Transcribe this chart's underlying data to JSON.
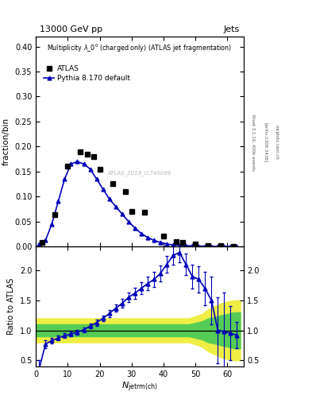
{
  "title_top_left": "13000 GeV pp",
  "title_top_right": "Jets",
  "main_subtitle": "Multiplicity λ_0° (charged only) (ATLAS jet fragmentation)",
  "ylabel_main": "fraction/bin",
  "ylabel_ratio": "Ratio to ATLAS",
  "xlabel": "$N_{\\rm jetrm(ch)}$",
  "rivet_label": "Rivet 3.1.10, 400k events",
  "arxiv_label": "[arXiv:1306.3436]",
  "mcplots_label": "mcplots.cern.ch",
  "atlas_watermark": "ATLAS_2019_I1740099",
  "atlas_x": [
    2,
    6,
    10,
    14,
    16,
    18,
    20,
    24,
    28,
    30,
    34,
    40,
    44,
    46,
    50,
    54,
    58,
    62
  ],
  "atlas_y": [
    0.008,
    0.063,
    0.16,
    0.19,
    0.185,
    0.18,
    0.155,
    0.125,
    0.11,
    0.07,
    0.068,
    0.02,
    0.01,
    0.008,
    0.005,
    0.002,
    0.001,
    0.0
  ],
  "pythia_x": [
    1,
    3,
    5,
    7,
    9,
    11,
    13,
    15,
    17,
    19,
    21,
    23,
    25,
    27,
    29,
    31,
    33,
    35,
    37,
    39,
    41,
    43,
    45,
    47,
    49,
    51,
    53,
    55,
    57,
    59,
    61,
    63
  ],
  "pythia_y": [
    0.005,
    0.012,
    0.045,
    0.09,
    0.135,
    0.165,
    0.17,
    0.165,
    0.155,
    0.135,
    0.115,
    0.095,
    0.08,
    0.065,
    0.05,
    0.037,
    0.026,
    0.018,
    0.012,
    0.008,
    0.005,
    0.003,
    0.002,
    0.0015,
    0.001,
    0.0007,
    0.0004,
    0.0002,
    0.0001,
    0.0001,
    0.0,
    0.0
  ],
  "ratio_x": [
    1,
    3,
    5,
    7,
    9,
    11,
    13,
    15,
    17,
    19,
    21,
    23,
    25,
    27,
    29,
    31,
    33,
    35,
    37,
    39,
    41,
    43,
    45,
    47,
    49,
    51,
    53,
    55,
    57,
    59,
    61,
    63
  ],
  "ratio_y": [
    0.35,
    0.77,
    0.83,
    0.87,
    0.91,
    0.94,
    0.97,
    1.01,
    1.07,
    1.13,
    1.2,
    1.28,
    1.37,
    1.45,
    1.55,
    1.62,
    1.7,
    1.78,
    1.85,
    1.95,
    2.1,
    2.25,
    2.3,
    2.1,
    1.9,
    1.85,
    1.7,
    1.5,
    1.0,
    0.98,
    0.95,
    0.92
  ],
  "ratio_yerr_lo": [
    0.15,
    0.07,
    0.05,
    0.04,
    0.04,
    0.04,
    0.04,
    0.04,
    0.04,
    0.05,
    0.05,
    0.06,
    0.06,
    0.07,
    0.08,
    0.09,
    0.1,
    0.11,
    0.12,
    0.13,
    0.14,
    0.15,
    0.16,
    0.18,
    0.2,
    0.22,
    0.28,
    0.4,
    0.55,
    0.65,
    0.45,
    0.22
  ],
  "ratio_yerr_hi": [
    0.15,
    0.07,
    0.05,
    0.04,
    0.04,
    0.04,
    0.04,
    0.04,
    0.04,
    0.05,
    0.05,
    0.06,
    0.06,
    0.07,
    0.08,
    0.09,
    0.1,
    0.11,
    0.12,
    0.13,
    0.14,
    0.15,
    0.16,
    0.18,
    0.2,
    0.22,
    0.28,
    0.4,
    0.55,
    0.65,
    0.45,
    0.22
  ],
  "green_band_x": [
    0,
    2,
    4,
    24,
    26,
    46,
    48,
    52,
    54,
    56,
    58,
    60,
    62,
    64
  ],
  "green_band_lo": [
    0.9,
    0.9,
    0.9,
    0.9,
    0.9,
    0.9,
    0.9,
    0.85,
    0.8,
    0.78,
    0.75,
    0.73,
    0.7,
    0.7
  ],
  "green_band_hi": [
    1.1,
    1.1,
    1.1,
    1.1,
    1.1,
    1.1,
    1.1,
    1.15,
    1.2,
    1.22,
    1.25,
    1.27,
    1.3,
    1.3
  ],
  "yellow_band_lo": [
    0.8,
    0.8,
    0.8,
    0.8,
    0.8,
    0.8,
    0.8,
    0.73,
    0.65,
    0.6,
    0.55,
    0.52,
    0.5,
    0.5
  ],
  "yellow_band_hi": [
    1.2,
    1.2,
    1.2,
    1.2,
    1.2,
    1.2,
    1.2,
    1.27,
    1.35,
    1.4,
    1.45,
    1.48,
    1.5,
    1.5
  ],
  "xlim": [
    0,
    65
  ],
  "ylim_main": [
    0.0,
    0.42
  ],
  "ylim_ratio": [
    0.4,
    2.4
  ],
  "yticks_main": [
    0.0,
    0.05,
    0.1,
    0.15,
    0.2,
    0.25,
    0.3,
    0.35,
    0.4
  ],
  "yticks_ratio": [
    0.5,
    1.0,
    1.5,
    2.0
  ],
  "xticks": [
    0,
    10,
    20,
    30,
    40,
    50,
    60
  ],
  "line_color": "#0000bb",
  "band_green": "#55cc55",
  "band_yellow": "#eeee44"
}
